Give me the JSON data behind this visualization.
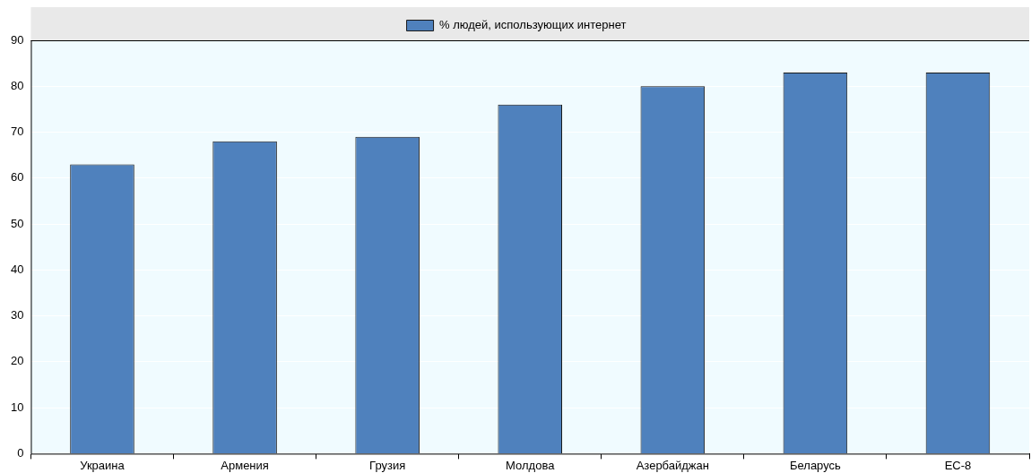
{
  "chart_data": {
    "type": "bar",
    "categories": [
      "Украина",
      "Армения",
      "Грузия",
      "Молдова",
      "Азербайджан",
      "Беларусь",
      "ЕС-8"
    ],
    "series": [
      {
        "name": "% людей, использующих интернет",
        "color": "#4f81bd",
        "values": [
          63,
          68,
          69,
          76,
          80,
          83,
          83
        ]
      }
    ],
    "ylim": [
      0,
      90
    ],
    "yticks": [
      0,
      10,
      20,
      30,
      40,
      50,
      60,
      70,
      80,
      90
    ],
    "grid": "y",
    "legend": "top"
  }
}
